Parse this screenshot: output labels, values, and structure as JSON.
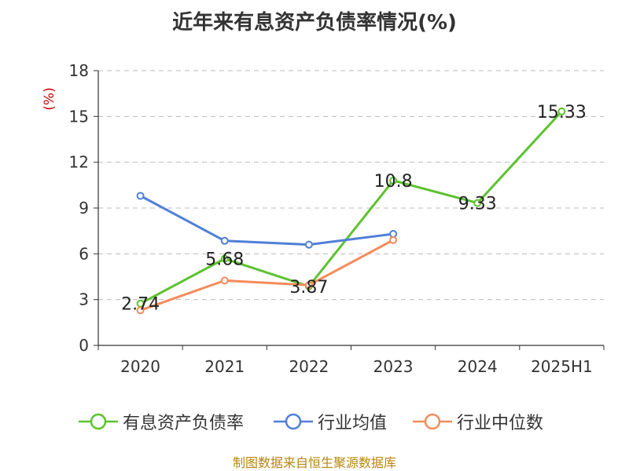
{
  "title": "近年来有息资产负债率情况(%)",
  "source_note": "制图数据来自恒生聚源数据库",
  "chart_data": {
    "type": "line",
    "title": "近年来有息资产负债率情况(%)",
    "ylabel": "(%)",
    "xlabel": "",
    "categories": [
      "2020",
      "2021",
      "2022",
      "2023",
      "2024",
      "2025H1"
    ],
    "ylim": [
      0,
      18
    ],
    "yticks": [
      0,
      3,
      6,
      9,
      12,
      15,
      18
    ],
    "grid": true,
    "legend_position": "bottom",
    "series": [
      {
        "name": "有息资产负债率",
        "color": "#5cc22e",
        "values": [
          2.74,
          5.68,
          3.87,
          10.8,
          9.33,
          15.33
        ],
        "labels": [
          "2.74",
          "5.68",
          "3.87",
          "10.8",
          "9.33",
          "15.33"
        ]
      },
      {
        "name": "行业均值",
        "color": "#4f7fd9",
        "values": [
          9.8,
          6.85,
          6.6,
          7.3,
          null,
          null
        ]
      },
      {
        "name": "行业中位数",
        "color": "#f58b5a",
        "values": [
          2.3,
          4.25,
          3.95,
          6.9,
          null,
          null
        ]
      }
    ]
  },
  "colors": {
    "ylabel": "#cc0000",
    "grid": "#bbbbbb",
    "axis": "#333333"
  }
}
